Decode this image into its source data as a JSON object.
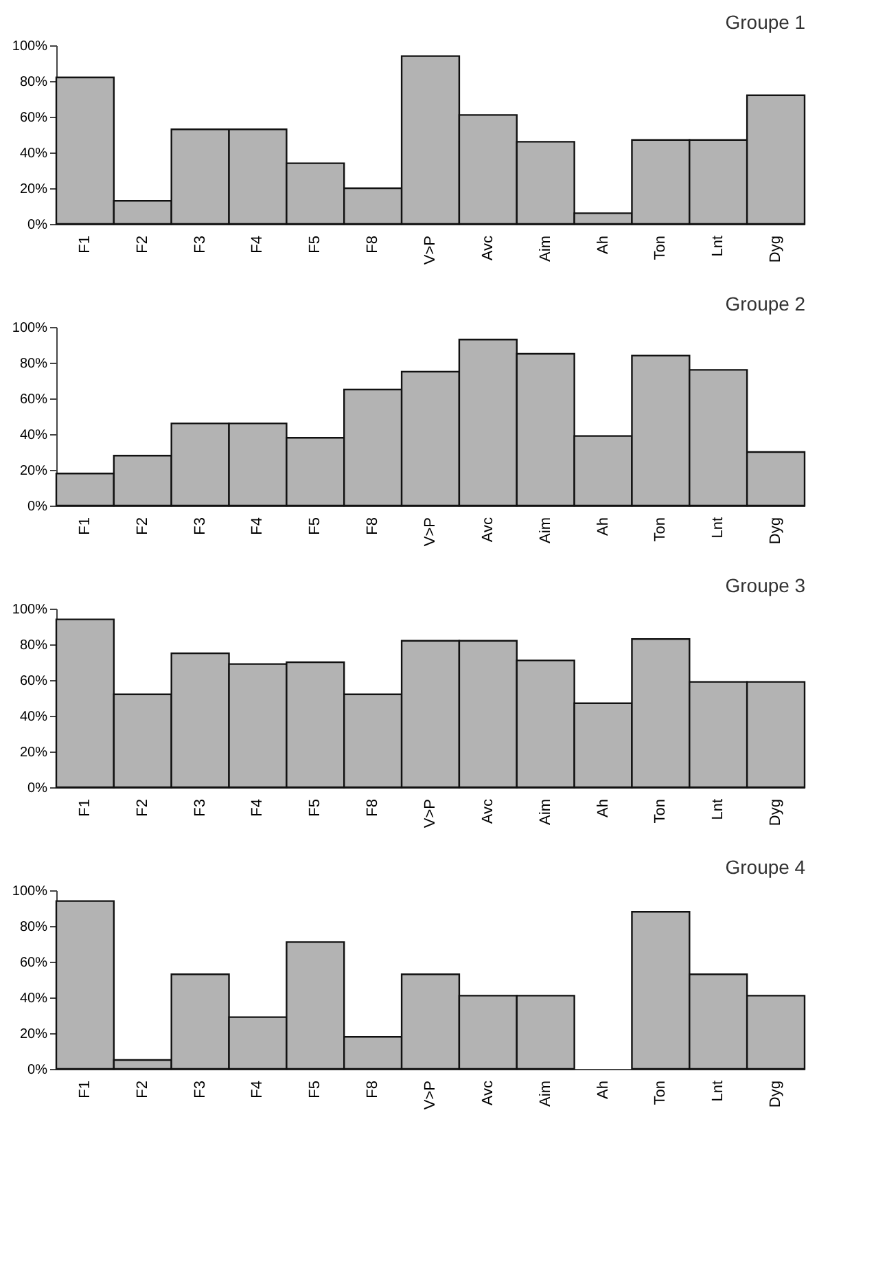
{
  "chart_data": [
    {
      "type": "bar",
      "title": "Groupe 1",
      "categories": [
        "F1",
        "F2",
        "F3",
        "F4",
        "F5",
        "F8",
        "V>P",
        "Avc",
        "Aim",
        "Ah",
        "Ton",
        "Lnt",
        "Dyg"
      ],
      "values": [
        82,
        13,
        53,
        53,
        34,
        20,
        94,
        61,
        46,
        6,
        47,
        47,
        72
      ],
      "color": "#b3b3b3",
      "ylim": [
        0,
        100
      ],
      "yticks": [
        {
          "value": 0,
          "label": "0%"
        },
        {
          "value": 20,
          "label": "20%"
        },
        {
          "value": 40,
          "label": "40%"
        },
        {
          "value": 60,
          "label": "60%"
        },
        {
          "value": 80,
          "label": "80%"
        },
        {
          "value": 100,
          "label": "100%"
        }
      ],
      "grid": false
    },
    {
      "type": "bar",
      "title": "Groupe 2",
      "categories": [
        "F1",
        "F2",
        "F3",
        "F4",
        "F5",
        "F8",
        "V>P",
        "Avc",
        "Aim",
        "Ah",
        "Ton",
        "Lnt",
        "Dyg"
      ],
      "values": [
        18,
        28,
        46,
        46,
        38,
        65,
        75,
        93,
        85,
        39,
        84,
        76,
        30
      ],
      "color": "#b3b3b3",
      "ylim": [
        0,
        100
      ],
      "yticks": [
        {
          "value": 0,
          "label": "0%"
        },
        {
          "value": 20,
          "label": "20%"
        },
        {
          "value": 40,
          "label": "40%"
        },
        {
          "value": 60,
          "label": "60%"
        },
        {
          "value": 80,
          "label": "80%"
        },
        {
          "value": 100,
          "label": "100%"
        }
      ],
      "grid": false
    },
    {
      "type": "bar",
      "title": "Groupe 3",
      "categories": [
        "F1",
        "F2",
        "F3",
        "F4",
        "F5",
        "F8",
        "V>P",
        "Avc",
        "Aim",
        "Ah",
        "Ton",
        "Lnt",
        "Dyg"
      ],
      "values": [
        94,
        52,
        75,
        69,
        70,
        52,
        82,
        82,
        71,
        47,
        83,
        59,
        59
      ],
      "color": "#b3b3b3",
      "ylim": [
        0,
        100
      ],
      "yticks": [
        {
          "value": 0,
          "label": "0%"
        },
        {
          "value": 20,
          "label": "20%"
        },
        {
          "value": 40,
          "label": "40%"
        },
        {
          "value": 60,
          "label": "60%"
        },
        {
          "value": 80,
          "label": "80%"
        },
        {
          "value": 100,
          "label": "100%"
        }
      ],
      "grid": false
    },
    {
      "type": "bar",
      "title": "Groupe 4",
      "categories": [
        "F1",
        "F2",
        "F3",
        "F4",
        "F5",
        "F8",
        "V>P",
        "Avc",
        "Aim",
        "Ah",
        "Ton",
        "Lnt",
        "Dyg"
      ],
      "values": [
        94,
        5,
        53,
        29,
        71,
        18,
        53,
        41,
        41,
        0,
        88,
        53,
        41
      ],
      "color": "#b3b3b3",
      "ylim": [
        0,
        100
      ],
      "yticks": [
        {
          "value": 0,
          "label": "0%"
        },
        {
          "value": 20,
          "label": "20%"
        },
        {
          "value": 40,
          "label": "40%"
        },
        {
          "value": 60,
          "label": "60%"
        },
        {
          "value": 80,
          "label": "80%"
        },
        {
          "value": 100,
          "label": "100%"
        }
      ],
      "grid": false
    }
  ]
}
